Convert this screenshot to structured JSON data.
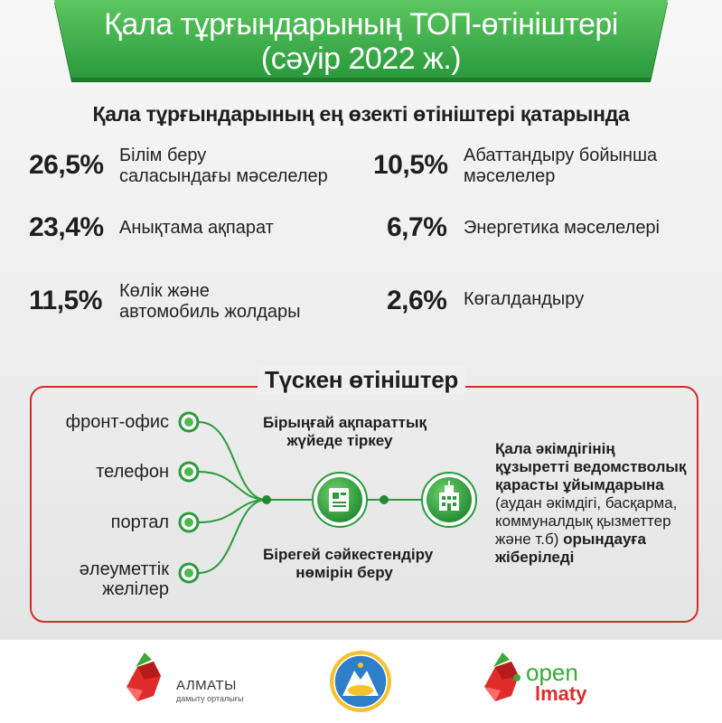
{
  "header": {
    "title_line1": "Қала тұрғындарының ТОП-өтініштері",
    "title_line2": "(сәуір 2022 ж.)"
  },
  "subtitle": "Қала тұрғындарының ең өзекті өтініштері қатарында",
  "stats": [
    {
      "pct": "26,5%",
      "label_line1": "Білім беру",
      "label_line2": "саласындағы мәселелер",
      "value": 26.5
    },
    {
      "pct": "23,4%",
      "label_line1": "Анықтама ақпарат",
      "label_line2": "",
      "value": 23.4
    },
    {
      "pct": "11,5%",
      "label_line1": "Көлік және",
      "label_line2": "автомобиль жолдары",
      "value": 11.5
    },
    {
      "pct": "10,5%",
      "label_line1": "Абаттандыру бойынша",
      "label_line2": "мәселелер",
      "value": 10.5
    },
    {
      "pct": "6,7%",
      "label_line1": "Энергетика мәселелері",
      "label_line2": "",
      "value": 6.7
    },
    {
      "pct": "2,6%",
      "label_line1": "Көгалдандыру",
      "label_line2": "",
      "value": 2.6
    }
  ],
  "incoming": {
    "title": "Түскен өтініштер",
    "channels": [
      {
        "line1": "фронт-офис",
        "line2": ""
      },
      {
        "line1": "телефон",
        "line2": ""
      },
      {
        "line1": "портал",
        "line2": ""
      },
      {
        "line1": "әлеуметтік",
        "line2": "желілер"
      }
    ],
    "step1_line1": "Бірыңғай ақпараттық",
    "step1_line2": "жүйеде тіркеу",
    "step2_line1": "Бірегей сәйкестендіру",
    "step2_line2": "нөмірін беру",
    "result": {
      "bold1": "Қала әкімдігінің",
      "bold2": "құзыретті ведомстволық",
      "bold3": "қарасты ұйымдарына",
      "normal1": "(аудан әкімдігі, басқарма,",
      "normal2": "коммуналдық қызметтер",
      "normal3": "және т.б) ",
      "bold4": "орындауға",
      "bold5": "жіберіледі"
    }
  },
  "footer": {
    "almaty_name": "АЛМАТЫ",
    "almaty_sub": "дамыту орталығы",
    "open_word": "open",
    "almaty_word": "lmaty"
  },
  "colors": {
    "green": "#2a9a3c",
    "green_light": "#5cc760",
    "red": "#d62b2b",
    "blue": "#2f7fc8"
  }
}
